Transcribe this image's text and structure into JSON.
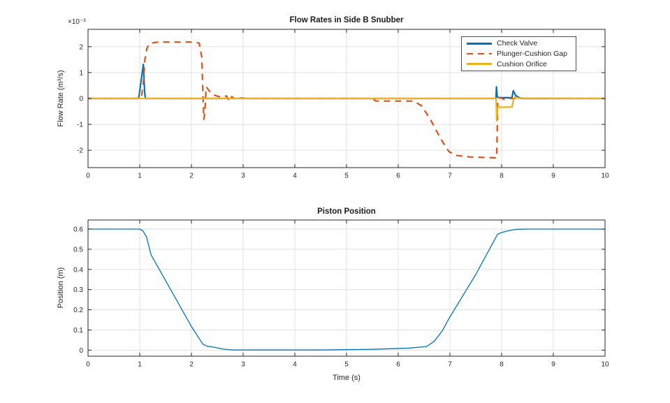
{
  "figure": {
    "background": "#ffffff",
    "colors": {
      "series_blue": "#0072BD",
      "series_orange": "#D95319",
      "series_yellow": "#EDB120",
      "axis": "#262626",
      "grid": "#e0e0e0",
      "text": "#262626"
    }
  },
  "chart_data": [
    {
      "type": "line",
      "title": "Flow Rates in Side B Snubber",
      "xlabel": "",
      "ylabel": "Flow Rate (m³/s)",
      "y_multiplier_label": "×10⁻³",
      "y_unit_note": "series y values are in units of 10⁻³ m³/s as shown by axis multiplier",
      "xlim": [
        0,
        10
      ],
      "ylim": [
        -2.67,
        2.67
      ],
      "xticks": [
        0,
        1,
        2,
        3,
        4,
        5,
        6,
        7,
        8,
        9,
        10
      ],
      "yticks": [
        -2,
        -1,
        0,
        1,
        2
      ],
      "grid": true,
      "legend": {
        "position": "northeast",
        "entries": [
          "Check Valve",
          "Plunger-Cushion Gap",
          "Cushion Orifice"
        ]
      },
      "series": [
        {
          "name": "Check Valve",
          "color": "#0072BD",
          "style": "solid",
          "width": 2.2,
          "points": [
            [
              0,
              0
            ],
            [
              0.98,
              0
            ],
            [
              1.07,
              1.32
            ],
            [
              1.095,
              0.25
            ],
            [
              1.11,
              0
            ],
            [
              7.89,
              0
            ],
            [
              7.9,
              0.45
            ],
            [
              7.915,
              0.06
            ],
            [
              7.95,
              0.03
            ],
            [
              8.2,
              0.03
            ],
            [
              8.225,
              0.3
            ],
            [
              8.27,
              0.12
            ],
            [
              8.35,
              0.02
            ],
            [
              8.45,
              0
            ],
            [
              10,
              0
            ]
          ]
        },
        {
          "name": "Plunger-Cushion Gap",
          "color": "#D95319",
          "style": "dashed",
          "width": 2.2,
          "points": [
            [
              0,
              0
            ],
            [
              1.03,
              0
            ],
            [
              1.07,
              0.6
            ],
            [
              1.1,
              1.5
            ],
            [
              1.14,
              1.95
            ],
            [
              1.2,
              2.13
            ],
            [
              1.35,
              2.18
            ],
            [
              2.05,
              2.18
            ],
            [
              2.15,
              2.14
            ],
            [
              2.2,
              1.6
            ],
            [
              2.225,
              0
            ],
            [
              2.24,
              -0.8
            ],
            [
              2.26,
              -0.55
            ],
            [
              2.285,
              0.45
            ],
            [
              2.35,
              0.28
            ],
            [
              2.45,
              0.12
            ],
            [
              2.58,
              0.05
            ],
            [
              2.68,
              0.1
            ],
            [
              2.73,
              -0.12
            ],
            [
              2.78,
              0.07
            ],
            [
              2.86,
              -0.04
            ],
            [
              2.95,
              0.02
            ],
            [
              3.1,
              0
            ],
            [
              5.5,
              0
            ],
            [
              5.57,
              -0.1
            ],
            [
              6.3,
              -0.1
            ],
            [
              6.45,
              -0.28
            ],
            [
              6.62,
              -0.8
            ],
            [
              6.82,
              -1.55
            ],
            [
              6.98,
              -2.05
            ],
            [
              7.12,
              -2.2
            ],
            [
              7.4,
              -2.26
            ],
            [
              7.88,
              -2.29
            ],
            [
              7.905,
              -2.29
            ],
            [
              7.925,
              -0.1
            ],
            [
              7.97,
              0.04
            ],
            [
              8.06,
              -0.05
            ],
            [
              8.16,
              0
            ],
            [
              10,
              0
            ]
          ]
        },
        {
          "name": "Cushion Orifice",
          "color": "#EDB120",
          "style": "solid",
          "width": 2.2,
          "points": [
            [
              0,
              0
            ],
            [
              7.893,
              0
            ],
            [
              7.905,
              -0.86
            ],
            [
              7.925,
              -0.34
            ],
            [
              8.2,
              -0.33
            ],
            [
              8.23,
              -0.05
            ],
            [
              8.26,
              0.06
            ],
            [
              8.33,
              0.01
            ],
            [
              10,
              0
            ]
          ]
        }
      ]
    },
    {
      "type": "line",
      "title": "Piston Position",
      "xlabel": "Time (s)",
      "ylabel": "Position (m)",
      "xlim": [
        0,
        10
      ],
      "ylim": [
        -0.03,
        0.645
      ],
      "xticks": [
        0,
        1,
        2,
        3,
        4,
        5,
        6,
        7,
        8,
        9,
        10
      ],
      "yticks": [
        0,
        0.1,
        0.2,
        0.3,
        0.4,
        0.5,
        0.6
      ],
      "grid": true,
      "series": [
        {
          "name": "Piston Position",
          "color": "#0072BD",
          "style": "solid",
          "width": 1.3,
          "points": [
            [
              0,
              0.6
            ],
            [
              1.0,
              0.6
            ],
            [
              1.06,
              0.592
            ],
            [
              1.13,
              0.562
            ],
            [
              1.22,
              0.472
            ],
            [
              1.5,
              0.345
            ],
            [
              2.0,
              0.117
            ],
            [
              2.22,
              0.03
            ],
            [
              2.3,
              0.02
            ],
            [
              2.45,
              0.014
            ],
            [
              2.62,
              0.005
            ],
            [
              2.78,
              0.001
            ],
            [
              4.5,
              0.001
            ],
            [
              5.5,
              0.004
            ],
            [
              6.2,
              0.01
            ],
            [
              6.55,
              0.018
            ],
            [
              6.7,
              0.045
            ],
            [
              6.85,
              0.095
            ],
            [
              7.0,
              0.165
            ],
            [
              7.5,
              0.375
            ],
            [
              7.92,
              0.574
            ],
            [
              8.0,
              0.583
            ],
            [
              8.15,
              0.593
            ],
            [
              8.3,
              0.599
            ],
            [
              8.5,
              0.6
            ],
            [
              10,
              0.6
            ]
          ]
        }
      ]
    }
  ]
}
